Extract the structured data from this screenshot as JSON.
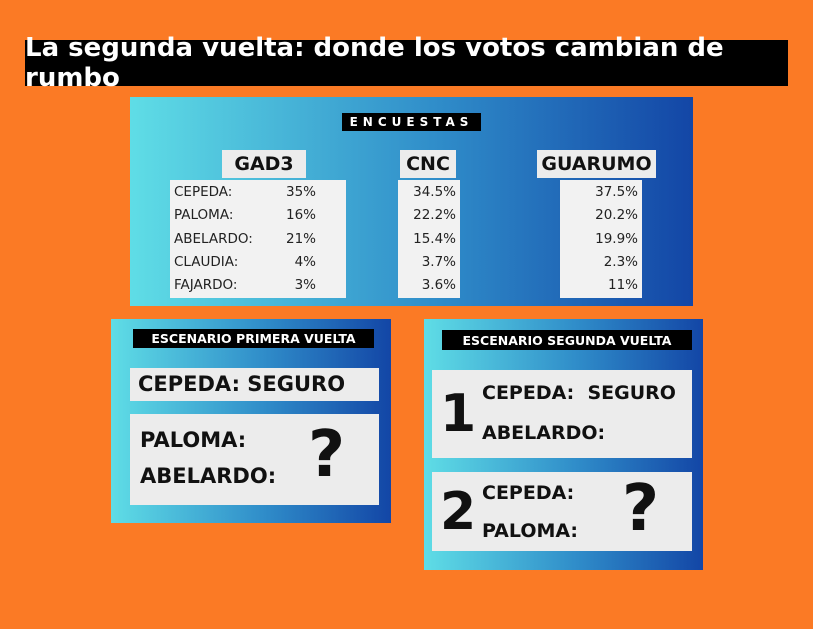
{
  "title": "La segunda vuelta: donde los votos cambian de rumbo",
  "polls": {
    "label": "ENCUESTAS",
    "candidates": [
      "CEPEDA:",
      "PALOMA:",
      "ABELARDO:",
      "CLAUDIA:",
      "FAJARDO:"
    ],
    "pollsters": [
      {
        "name": "GAD3",
        "values": [
          "35%",
          "16%",
          "21%",
          "4%",
          "3%"
        ]
      },
      {
        "name": "CNC",
        "values": [
          "34.5%",
          "22.2%",
          "15.4%",
          "3.7%",
          "3.6%"
        ]
      },
      {
        "name": "GUARUMO",
        "values": [
          "37.5%",
          "20.2%",
          "19.9%",
          "2.3%",
          "11%"
        ]
      }
    ]
  },
  "first_round": {
    "label": "ESCENARIO PRIMERA VUELTA",
    "safe": "CEPEDA: SEGURO",
    "contenders": [
      "PALOMA:",
      "ABELARDO:"
    ],
    "unknown": "?"
  },
  "second_round": {
    "label": "ESCENARIO SEGUNDA VUELTA",
    "scenarios": [
      {
        "number": "1",
        "lines": [
          "CEPEDA:  SEGURO",
          "ABELARDO:"
        ]
      },
      {
        "number": "2",
        "lines": [
          "CEPEDA:",
          "PALOMA:"
        ],
        "unknown": "?"
      }
    ]
  }
}
